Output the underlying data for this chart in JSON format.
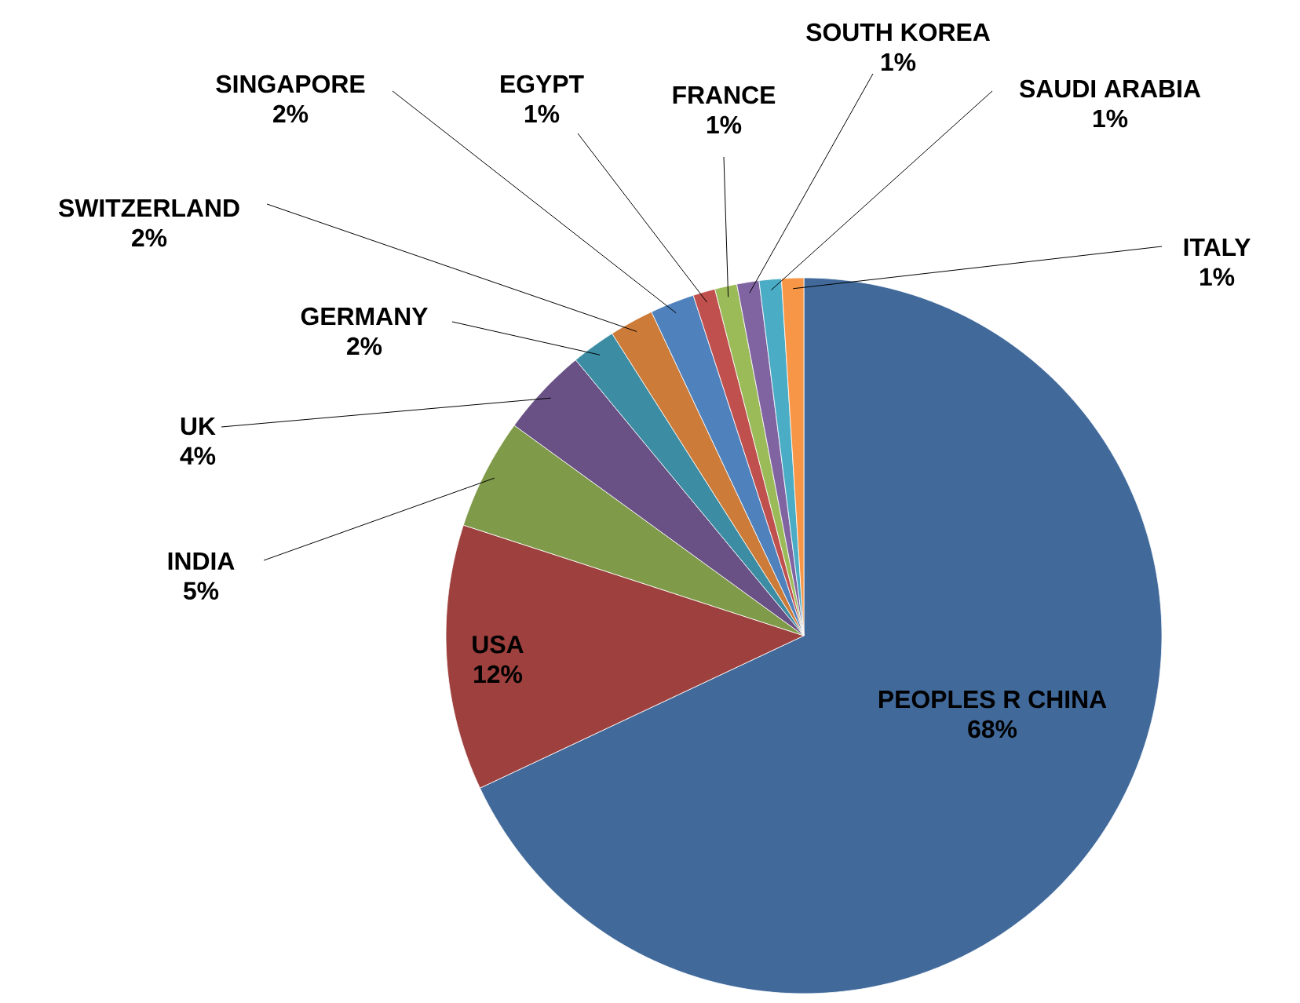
{
  "chart_data": {
    "type": "pie",
    "categories": [
      "PEOPLES R CHINA",
      "USA",
      "INDIA",
      "UK",
      "GERMANY",
      "SWITZERLAND",
      "SINGAPORE",
      "EGYPT",
      "FRANCE",
      "SOUTH KOREA",
      "SAUDI ARABIA",
      "ITALY"
    ],
    "values": [
      68,
      12,
      5,
      4,
      2,
      2,
      2,
      1,
      1,
      1,
      1,
      1
    ],
    "value_labels": [
      "68%",
      "12%",
      "5%",
      "4%",
      "2%",
      "2%",
      "2%",
      "1%",
      "1%",
      "1%",
      "1%",
      "1%"
    ],
    "colors": [
      "#416a9b",
      "#9e413e",
      "#7f9a48",
      "#695185",
      "#3c8da3",
      "#cc7b38",
      "#4f81bd",
      "#c0504d",
      "#9bbb59",
      "#8064a2",
      "#4bacc6",
      "#f79646"
    ]
  }
}
